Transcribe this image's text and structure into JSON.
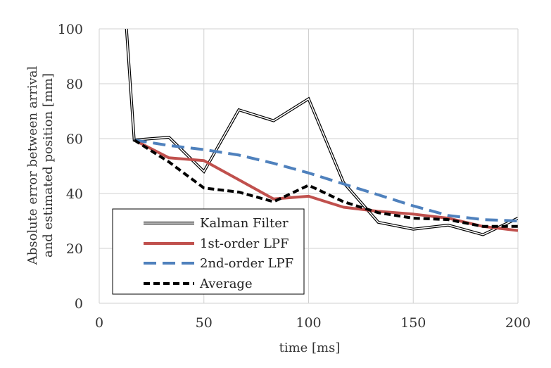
{
  "chart_data": {
    "type": "line",
    "title": "",
    "xlabel": "time [ms]",
    "ylabel_lines": [
      "Absolute error between arrival",
      "and estimated position [mm]"
    ],
    "xlim": [
      0,
      200
    ],
    "ylim": [
      0,
      100
    ],
    "xticks": [
      0,
      50,
      100,
      150,
      200
    ],
    "yticks": [
      0,
      20,
      40,
      60,
      80,
      100
    ],
    "grid": true,
    "legend_position": "bottom-left",
    "series": [
      {
        "name": "Kalman Filter",
        "style": "double",
        "color": "#000000",
        "points": [
          [
            13,
            100
          ],
          [
            16.7,
            59.5
          ],
          [
            33.3,
            60.5
          ],
          [
            50,
            48
          ],
          [
            66.7,
            70.5
          ],
          [
            83.3,
            66.5
          ],
          [
            100,
            74.5
          ],
          [
            116.7,
            44
          ],
          [
            133.3,
            29.5
          ],
          [
            150,
            27
          ],
          [
            166.7,
            28.5
          ],
          [
            183.3,
            25
          ],
          [
            200,
            31
          ]
        ]
      },
      {
        "name": "1st-order LPF",
        "style": "solid",
        "color": "#c0504d",
        "points": [
          [
            16.7,
            59.5
          ],
          [
            33.3,
            53
          ],
          [
            50,
            52
          ],
          [
            66.7,
            45
          ],
          [
            83.3,
            38
          ],
          [
            100,
            39
          ],
          [
            116.7,
            35
          ],
          [
            133.3,
            33.5
          ],
          [
            150,
            32.5
          ],
          [
            166.7,
            31
          ],
          [
            183.3,
            28
          ],
          [
            200,
            26.5
          ]
        ]
      },
      {
        "name": "2nd-order LPF",
        "style": "dashed",
        "color": "#4f81bd",
        "points": [
          [
            16.7,
            59.5
          ],
          [
            33.3,
            57.5
          ],
          [
            50,
            56
          ],
          [
            66.7,
            54
          ],
          [
            83.3,
            51
          ],
          [
            100,
            47.5
          ],
          [
            116.7,
            43.5
          ],
          [
            133.3,
            39.5
          ],
          [
            150,
            35.5
          ],
          [
            166.7,
            32
          ],
          [
            183.3,
            30.5
          ],
          [
            200,
            30
          ]
        ]
      },
      {
        "name": "Average",
        "style": "dotted-dash",
        "color": "#000000",
        "points": [
          [
            16.7,
            59.5
          ],
          [
            33.3,
            51.5
          ],
          [
            50,
            42
          ],
          [
            66.7,
            40.5
          ],
          [
            83.3,
            37
          ],
          [
            100,
            43
          ],
          [
            116.7,
            37
          ],
          [
            133.3,
            33
          ],
          [
            150,
            31
          ],
          [
            166.7,
            30.5
          ],
          [
            183.3,
            28
          ],
          [
            200,
            28
          ]
        ]
      }
    ]
  }
}
